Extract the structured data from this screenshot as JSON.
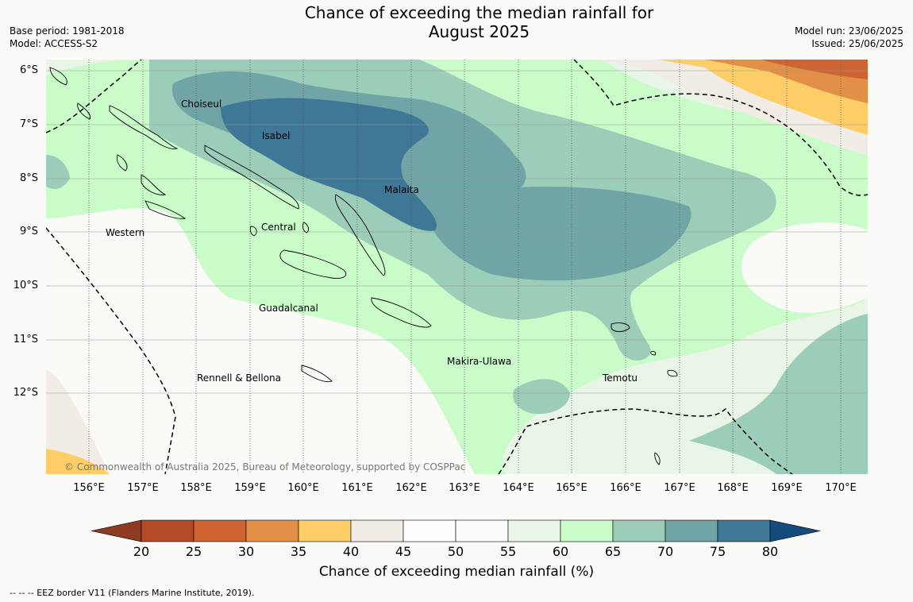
{
  "title_line1": "Chance of exceeding the median rainfall for",
  "title_line2": "August 2025",
  "base_period": "Base period: 1981-2018",
  "model": "Model: ACCESS-S2",
  "model_run": "Model run: 23/06/2025",
  "issued": "Issued: 25/06/2025",
  "lat_labels": [
    "6°S",
    "7°S",
    "8°S",
    "9°S",
    "10°S",
    "11°S",
    "12°S"
  ],
  "lon_labels": [
    "156°E",
    "157°E",
    "158°E",
    "159°E",
    "160°E",
    "161°E",
    "162°E",
    "163°E",
    "164°E",
    "165°E",
    "166°E",
    "167°E",
    "168°E",
    "169°E",
    "170°E"
  ],
  "regions": {
    "choiseul": "Choiseul",
    "isabel": "Isabel",
    "malaita": "Malaita",
    "central": "Central",
    "western": "Western",
    "guadalcanal": "Guadalcanal",
    "makira": "Makira-Ulawa",
    "temotu": "Temotu",
    "rennell": "Rennell & Bellona"
  },
  "copyright": "© Commonwealth of Australia 2025, Bureau of Meteorology, supported by COSPPac",
  "colorbar": {
    "ticks": [
      "20",
      "25",
      "30",
      "35",
      "40",
      "45",
      "50",
      "55",
      "60",
      "65",
      "70",
      "75",
      "80"
    ],
    "colors": [
      "#8f3a22",
      "#b34a28",
      "#cd6432",
      "#e29048",
      "#fdcd68",
      "#f1ede6",
      "#fdfdfb",
      "#fbfcf9",
      "#e9f5e6",
      "#c9fcc9",
      "#9ccdb8",
      "#70a4a6",
      "#3f7797",
      "#134b7d"
    ],
    "label": "Chance of exceeding median rainfall (%)"
  },
  "eez_label": "--  --  -- EEZ border V11 (Flanders Marine Institute, 2019)."
}
